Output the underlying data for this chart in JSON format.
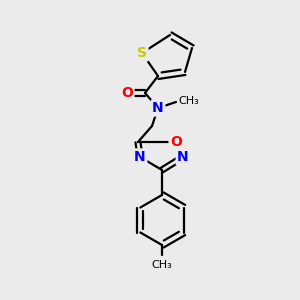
{
  "bg_color": "#ebebeb",
  "bond_color": "#000000",
  "atom_colors": {
    "S": "#cccc00",
    "O": "#ff0000",
    "N": "#0000ff",
    "C": "#000000"
  },
  "font_size_atom": 10,
  "font_size_methyl": 8,
  "figsize": [
    3.0,
    3.0
  ],
  "dpi": 100
}
